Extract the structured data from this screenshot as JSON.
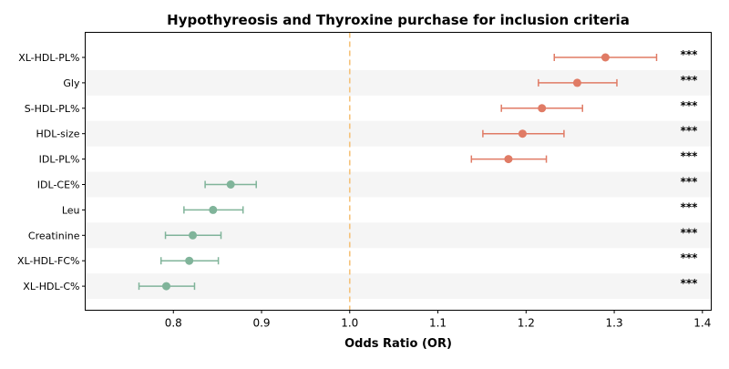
{
  "chart_data": {
    "type": "scatter",
    "title": "Hypothyreosis and Thyroxine purchase for inclusion criteria",
    "xlabel": "Odds Ratio (OR)",
    "ylabel": "",
    "xlim": [
      0.7,
      1.41
    ],
    "xticks": [
      0.8,
      0.9,
      1.0,
      1.1,
      1.2,
      1.3,
      1.4
    ],
    "xtick_labels": [
      "0.8",
      "0.9",
      "1.0",
      "1.1",
      "1.2",
      "1.3",
      "1.4"
    ],
    "reference_line": 1.0,
    "reference_line_color": "#f5c27a",
    "grid": false,
    "row_shading_color": "#f5f5f5",
    "colors": {
      "increased": "#e07b65",
      "decreased": "#80b49a"
    },
    "points": [
      {
        "label": "XL-HDL-PL%",
        "or": 1.29,
        "ci_low": 1.232,
        "ci_high": 1.348,
        "sig": "***",
        "group": "increased"
      },
      {
        "label": "Gly",
        "or": 1.258,
        "ci_low": 1.214,
        "ci_high": 1.303,
        "sig": "***",
        "group": "increased"
      },
      {
        "label": "S-HDL-PL%",
        "or": 1.218,
        "ci_low": 1.172,
        "ci_high": 1.264,
        "sig": "***",
        "group": "increased"
      },
      {
        "label": "HDL-size",
        "or": 1.196,
        "ci_low": 1.151,
        "ci_high": 1.243,
        "sig": "***",
        "group": "increased"
      },
      {
        "label": "IDL-PL%",
        "or": 1.18,
        "ci_low": 1.138,
        "ci_high": 1.223,
        "sig": "***",
        "group": "increased"
      },
      {
        "label": "IDL-CE%",
        "or": 0.865,
        "ci_low": 0.836,
        "ci_high": 0.894,
        "sig": "***",
        "group": "decreased"
      },
      {
        "label": "Leu",
        "or": 0.845,
        "ci_low": 0.812,
        "ci_high": 0.879,
        "sig": "***",
        "group": "decreased"
      },
      {
        "label": "Creatinine",
        "or": 0.822,
        "ci_low": 0.791,
        "ci_high": 0.854,
        "sig": "***",
        "group": "decreased"
      },
      {
        "label": "XL-HDL-FC%",
        "or": 0.818,
        "ci_low": 0.786,
        "ci_high": 0.851,
        "sig": "***",
        "group": "decreased"
      },
      {
        "label": "XL-HDL-C%",
        "or": 0.792,
        "ci_low": 0.761,
        "ci_high": 0.824,
        "sig": "***",
        "group": "decreased"
      }
    ]
  }
}
